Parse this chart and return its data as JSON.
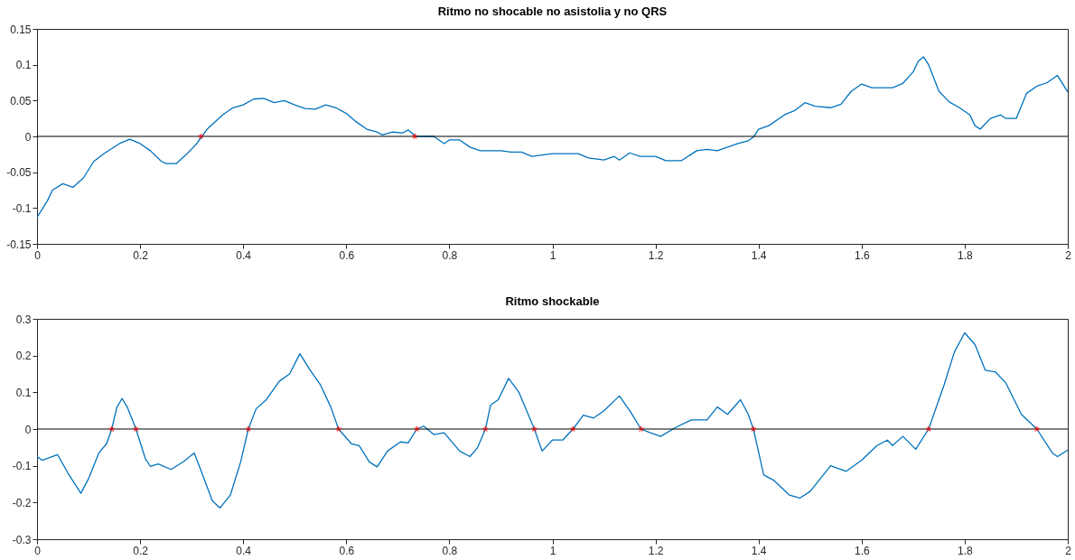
{
  "chart_data": [
    {
      "type": "line",
      "title": "Ritmo no shocable no asistolia y no QRS",
      "xlim": [
        0,
        2
      ],
      "xticks": [
        0,
        0.2,
        0.4,
        0.6,
        0.8,
        1,
        1.2,
        1.4,
        1.6,
        1.8,
        2
      ],
      "ylim": [
        -0.15,
        0.15
      ],
      "yticks": [
        -0.15,
        -0.1,
        -0.05,
        0,
        0.05,
        0.1,
        0.15
      ],
      "series": [
        {
          "color": "#0072bd",
          "x": [
            0,
            0.02,
            0.03,
            0.05,
            0.07,
            0.09,
            0.11,
            0.13,
            0.16,
            0.18,
            0.2,
            0.22,
            0.24,
            0.25,
            0.27,
            0.29,
            0.31,
            0.32,
            0.33,
            0.36,
            0.38,
            0.4,
            0.42,
            0.44,
            0.46,
            0.48,
            0.5,
            0.52,
            0.54,
            0.56,
            0.58,
            0.6,
            0.62,
            0.64,
            0.66,
            0.67,
            0.69,
            0.71,
            0.72,
            0.735,
            0.77,
            0.79,
            0.8,
            0.82,
            0.84,
            0.86,
            0.9,
            0.92,
            0.94,
            0.96,
            0.98,
            1,
            1.05,
            1.07,
            1.1,
            1.12,
            1.13,
            1.15,
            1.17,
            1.2,
            1.22,
            1.25,
            1.28,
            1.3,
            1.32,
            1.36,
            1.38,
            1.39,
            1.4,
            1.42,
            1.45,
            1.47,
            1.49,
            1.51,
            1.54,
            1.56,
            1.58,
            1.6,
            1.62,
            1.66,
            1.68,
            1.7,
            1.71,
            1.72,
            1.73,
            1.75,
            1.77,
            1.79,
            1.81,
            1.82,
            1.83,
            1.85,
            1.87,
            1.88,
            1.9,
            1.92,
            1.94,
            1.96,
            1.98,
            2
          ],
          "values": [
            -0.113,
            -0.09,
            -0.075,
            -0.066,
            -0.071,
            -0.058,
            -0.035,
            -0.024,
            -0.01,
            -0.004,
            -0.01,
            -0.02,
            -0.034,
            -0.038,
            -0.038,
            -0.025,
            -0.01,
            0,
            0.01,
            0.03,
            0.04,
            0.044,
            0.052,
            0.053,
            0.047,
            0.05,
            0.044,
            0.039,
            0.038,
            0.044,
            0.04,
            0.032,
            0.02,
            0.01,
            0.006,
            0.002,
            0.006,
            0.005,
            0.009,
            0,
            0,
            -0.01,
            -0.005,
            -0.005,
            -0.015,
            -0.02,
            -0.02,
            -0.022,
            -0.022,
            -0.028,
            -0.026,
            -0.024,
            -0.024,
            -0.03,
            -0.033,
            -0.028,
            -0.033,
            -0.023,
            -0.028,
            -0.028,
            -0.034,
            -0.034,
            -0.02,
            -0.018,
            -0.02,
            -0.01,
            -0.006,
            -0.001,
            0.01,
            0.015,
            0.03,
            0.036,
            0.047,
            0.042,
            0.04,
            0.045,
            0.063,
            0.073,
            0.068,
            0.068,
            0.074,
            0.09,
            0.105,
            0.111,
            0.1,
            0.063,
            0.048,
            0.04,
            0.03,
            0.015,
            0.01,
            0.025,
            0.03,
            0.025,
            0.025,
            0.06,
            0.07,
            0.075,
            0.085,
            0.062
          ]
        },
        {
          "type": "scatter",
          "color": "#ff0000",
          "marker": "star",
          "x": [
            0.318,
            0.733
          ],
          "values": [
            0,
            0
          ]
        }
      ],
      "ref_lines": [
        {
          "axis": "y",
          "value": 0,
          "color": "#000000"
        }
      ]
    },
    {
      "type": "line",
      "title": "Ritmo shockable",
      "xlim": [
        0,
        2
      ],
      "xticks": [
        0,
        0.2,
        0.4,
        0.6,
        0.8,
        1,
        1.2,
        1.4,
        1.6,
        1.8,
        2
      ],
      "ylim": [
        -0.3,
        0.3
      ],
      "yticks": [
        -0.3,
        -0.2,
        -0.1,
        0,
        0.1,
        0.2,
        0.3
      ],
      "series": [
        {
          "color": "#0072bd",
          "x": [
            0,
            0.01,
            0.04,
            0.06,
            0.085,
            0.1,
            0.12,
            0.135,
            0.145,
            0.155,
            0.165,
            0.175,
            0.192,
            0.21,
            0.22,
            0.235,
            0.26,
            0.285,
            0.305,
            0.32,
            0.34,
            0.355,
            0.375,
            0.395,
            0.41,
            0.425,
            0.445,
            0.47,
            0.49,
            0.51,
            0.53,
            0.55,
            0.57,
            0.585,
            0.61,
            0.625,
            0.645,
            0.66,
            0.68,
            0.705,
            0.72,
            0.737,
            0.75,
            0.77,
            0.79,
            0.82,
            0.84,
            0.855,
            0.87,
            0.88,
            0.895,
            0.915,
            0.935,
            0.95,
            0.965,
            0.98,
            1,
            1.02,
            1.04,
            1.06,
            1.08,
            1.1,
            1.13,
            1.15,
            1.172,
            1.19,
            1.21,
            1.24,
            1.27,
            1.3,
            1.32,
            1.34,
            1.365,
            1.38,
            1.39,
            1.41,
            1.43,
            1.46,
            1.48,
            1.5,
            1.54,
            1.57,
            1.6,
            1.63,
            1.65,
            1.66,
            1.68,
            1.705,
            1.73,
            1.76,
            1.78,
            1.8,
            1.82,
            1.84,
            1.86,
            1.88,
            1.91,
            1.94,
            1.97,
            1.98,
            2
          ],
          "values": [
            -0.075,
            -0.085,
            -0.07,
            -0.12,
            -0.175,
            -0.135,
            -0.065,
            -0.04,
            0,
            0.06,
            0.083,
            0.06,
            0,
            -0.08,
            -0.102,
            -0.095,
            -0.11,
            -0.088,
            -0.065,
            -0.12,
            -0.195,
            -0.215,
            -0.18,
            -0.09,
            0,
            0.055,
            0.08,
            0.13,
            0.15,
            0.205,
            0.16,
            0.12,
            0.06,
            0,
            -0.04,
            -0.045,
            -0.09,
            -0.103,
            -0.06,
            -0.035,
            -0.038,
            0,
            0.008,
            -0.015,
            -0.01,
            -0.06,
            -0.075,
            -0.05,
            0,
            0.065,
            0.08,
            0.138,
            0.1,
            0.05,
            0,
            -0.06,
            -0.03,
            -0.03,
            0,
            0.038,
            0.03,
            0.05,
            0.09,
            0.05,
            0,
            -0.01,
            -0.02,
            0.005,
            0.025,
            0.025,
            0.06,
            0.04,
            0.08,
            0.04,
            0,
            -0.125,
            -0.14,
            -0.18,
            -0.188,
            -0.17,
            -0.1,
            -0.115,
            -0.085,
            -0.045,
            -0.03,
            -0.045,
            -0.02,
            -0.055,
            0,
            0.12,
            0.21,
            0.262,
            0.23,
            0.16,
            0.155,
            0.125,
            0.04,
            0,
            -0.065,
            -0.075,
            -0.057
          ]
        },
        {
          "type": "scatter",
          "color": "#ff0000",
          "marker": "star",
          "x": [
            0.145,
            0.192,
            0.41,
            0.585,
            0.737,
            0.87,
            0.965,
            1.04,
            1.172,
            1.39,
            1.73,
            1.94
          ],
          "values": [
            0,
            0,
            0,
            0,
            0,
            0,
            0,
            0,
            0,
            0,
            0,
            0
          ]
        }
      ],
      "ref_lines": [
        {
          "axis": "y",
          "value": 0,
          "color": "#000000"
        }
      ]
    }
  ]
}
